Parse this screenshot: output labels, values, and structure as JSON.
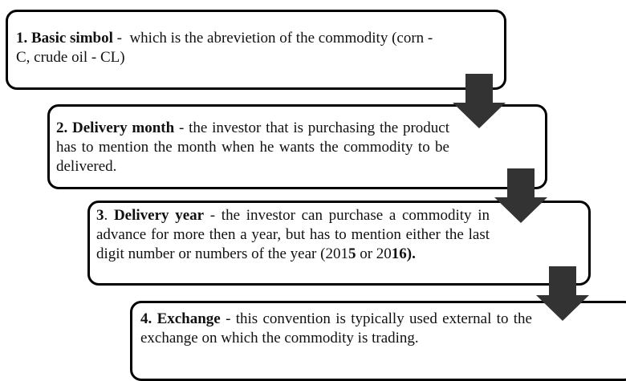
{
  "steps": [
    {
      "parts": [
        {
          "text": "1. Basic simbol",
          "bold": true
        },
        {
          "text": " -  which is the abrevietion of the commodity (corn - C, crude oil - CL)",
          "bold": false
        }
      ]
    },
    {
      "parts": [
        {
          "text": "2. Delivery month",
          "bold": true
        },
        {
          "text": " - the investor that is purchasing the product has to mention the month when he wants the commodity to be delivered.",
          "bold": false
        }
      ]
    },
    {
      "parts": [
        {
          "text": "3",
          "bold": true
        },
        {
          "text": ". ",
          "bold": false
        },
        {
          "text": "Delivery year",
          "bold": true
        },
        {
          "text": " - the investor can purchase a commodity in advance for more then a year, but has to mention either the last digit number or numbers of the year (201",
          "bold": false
        },
        {
          "text": "5",
          "bold": true
        },
        {
          "text": " or 20",
          "bold": false
        },
        {
          "text": "16).",
          "bold": true
        }
      ]
    },
    {
      "parts": [
        {
          "text": "4. Exchange",
          "bold": true
        },
        {
          "text": " - this convention is typically used external to the exchange on which the commodity is trading.",
          "bold": false
        }
      ]
    }
  ]
}
